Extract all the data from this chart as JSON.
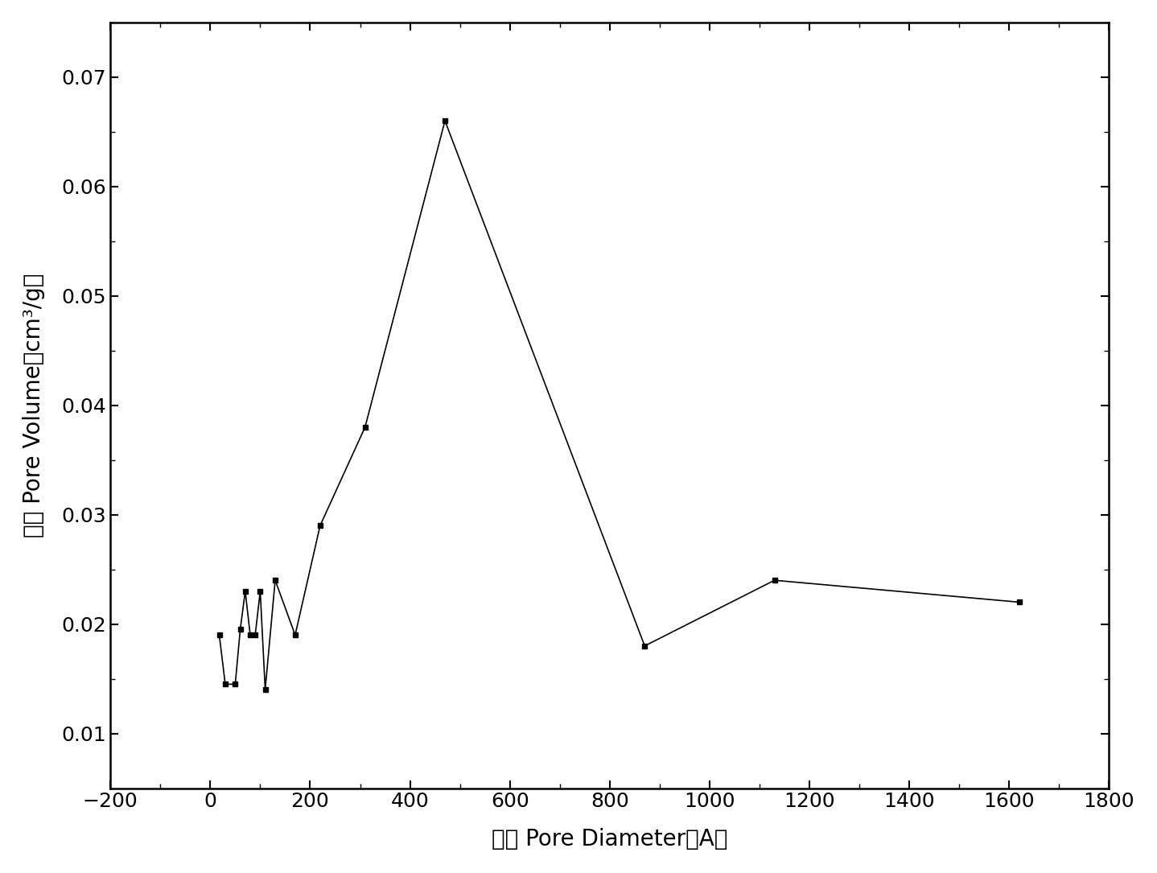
{
  "x": [
    18,
    30,
    50,
    60,
    70,
    80,
    90,
    100,
    110,
    130,
    170,
    220,
    310,
    470,
    870,
    1130,
    1620
  ],
  "y": [
    0.019,
    0.0145,
    0.0145,
    0.0195,
    0.023,
    0.019,
    0.019,
    0.023,
    0.014,
    0.024,
    0.019,
    0.029,
    0.038,
    0.066,
    0.018,
    0.024,
    0.022
  ],
  "xlabel_cn": "孔径",
  "xlabel_en": " Pore Diameter （A）",
  "ylabel_cn": "孔容",
  "ylabel_en": " Pore Volume （cm³/g）",
  "xlim": [
    -200,
    1800
  ],
  "ylim": [
    0.005,
    0.075
  ],
  "xticks": [
    -200,
    0,
    200,
    400,
    600,
    800,
    1000,
    1200,
    1400,
    1600,
    1800
  ],
  "yticks": [
    0.01,
    0.02,
    0.03,
    0.04,
    0.05,
    0.06,
    0.07
  ],
  "line_color": "#000000",
  "marker": "s",
  "marker_size": 5,
  "line_width": 1.2,
  "background_color": "#ffffff",
  "xlabel_fontsize": 20,
  "ylabel_fontsize": 20,
  "tick_fontsize": 18
}
